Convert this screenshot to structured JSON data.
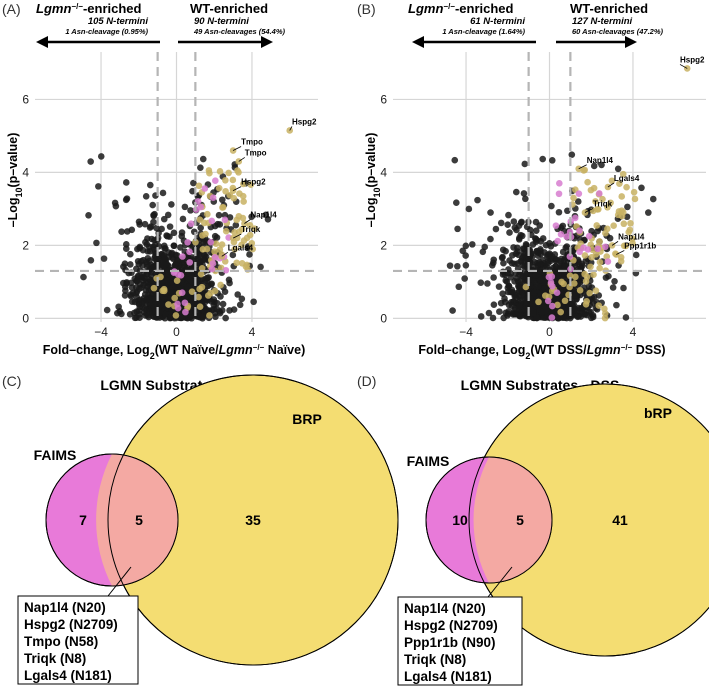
{
  "colors": {
    "black_points": "#1a1a1a",
    "gold_points": "#c8b163",
    "pink_points": "#d77ccf",
    "grid": "#d6d6d6",
    "threshold": "#b5b5b5",
    "faims": "#e87ad9",
    "overlap": "#f4a9a3",
    "rp": "#f4dd72"
  },
  "chart_data": [
    {
      "type": "scatter",
      "panel": "(A)",
      "left_title": "-enriched",
      "left_gene": "Lgmn",
      "left_count": "105 N-termini",
      "left_asn": "1 Asn-cleavage (0.95%)",
      "right_title": "WT-enriched",
      "right_count": "90 N-termini",
      "right_asn": "49 Asn-cleavages (54.4%)",
      "xlabel_prefix": "Fold–change, Log",
      "xlabel_sub": "2",
      "xlabel_mid": "(WT Naïve/",
      "xlabel_gene": "Lgmn",
      "xlabel_suffix": " Naïve)",
      "ylabel_prefix": "–Log",
      "ylabel_sub": "10",
      "ylabel_suffix": "(p–value)",
      "x_ticks": [
        "−4",
        "0",
        "4"
      ],
      "y_ticks": [
        "0",
        "2",
        "4",
        "6"
      ],
      "xlim": [
        -7.5,
        7.5
      ],
      "ylim": [
        -0.1,
        7.3
      ],
      "fc_threshold": 1,
      "p_threshold": 1.3,
      "labels": [
        {
          "gene": "Hspg2",
          "x": 6.0,
          "y": 5.15
        },
        {
          "gene": "Tmpo",
          "x": 3.0,
          "y": 4.6
        },
        {
          "gene": "Tmpo",
          "x": 3.3,
          "y": 4.3
        },
        {
          "gene": "Hspg2",
          "x": 3.0,
          "y": 3.5
        },
        {
          "gene": "Nap1l4",
          "x": 3.6,
          "y": 2.6
        },
        {
          "gene": "Triqk",
          "x": 3.0,
          "y": 2.2
        },
        {
          "gene": "Lgals4",
          "x": 2.4,
          "y": 1.7
        }
      ]
    },
    {
      "type": "scatter",
      "panel": "(B)",
      "left_title": "-enriched",
      "left_gene": "Lgmn",
      "left_count": "61 N-termini",
      "left_asn": "1 Asn-cleavage (1.64%)",
      "right_title": "WT-enriched",
      "right_count": "127 N-termini",
      "right_asn": "60 Asn-cleavages (47.2%)",
      "xlabel_prefix": "Fold–change, Log",
      "xlabel_sub": "2",
      "xlabel_mid": "(WT DSS/",
      "xlabel_gene": "Lgmn",
      "xlabel_suffix": " DSS)",
      "ylabel_prefix": "–Log",
      "ylabel_sub": "10",
      "ylabel_suffix": "(p–value)",
      "x_ticks": [
        "−4",
        "0",
        "4"
      ],
      "y_ticks": [
        "0",
        "2",
        "4",
        "6"
      ],
      "xlim": [
        -7.5,
        7.5
      ],
      "ylim": [
        -0.1,
        7.3
      ],
      "fc_threshold": 1,
      "p_threshold": 1.3,
      "labels": [
        {
          "gene": "Hspg2",
          "x": 6.6,
          "y": 6.85
        },
        {
          "gene": "Nap1l4",
          "x": 1.4,
          "y": 4.1
        },
        {
          "gene": "Lgals4",
          "x": 2.8,
          "y": 3.6
        },
        {
          "gene": "Triqk",
          "x": 1.7,
          "y": 2.9
        },
        {
          "gene": "Nap1l4",
          "x": 3.0,
          "y": 2.0
        },
        {
          "gene": "Ppp1r1b",
          "x": 3.2,
          "y": 1.75
        }
      ]
    }
  ],
  "venn": [
    {
      "panel": "(C)",
      "title": "LGMN Substrates - Naïve",
      "left_set": "FAIMS",
      "right_set": "BRP",
      "left_only": "7",
      "overlap": "5",
      "right_only": "35",
      "overlap_items": [
        "Nap1l4 (N20)",
        "Hspg2 (N2709)",
        "Tmpo (N58)",
        "Triqk (N8)",
        "Lgals4 (N181)"
      ]
    },
    {
      "panel": "(D)",
      "title": "LGMN Substrates - DSS",
      "left_set": "FAIMS",
      "right_set": "bRP",
      "left_only": "10",
      "overlap": "5",
      "right_only": "41",
      "overlap_items": [
        "Nap1l4 (N20)",
        "Hspg2 (N2709)",
        "Ppp1r1b (N90)",
        "Triqk (N8)",
        "Lgals4 (N181)"
      ]
    }
  ]
}
